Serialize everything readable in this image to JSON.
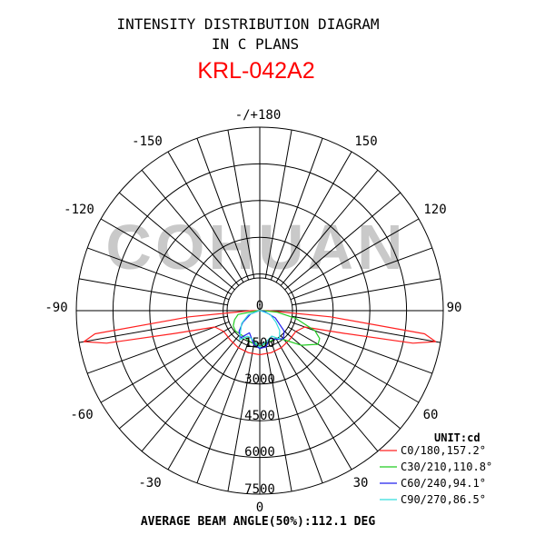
{
  "chart_data": {
    "type": "polar-line",
    "title_line1": "INTENSITY DISTRIBUTION DIAGRAM",
    "title_line2": "IN C PLANS",
    "model": "KRL-042A2",
    "watermark": "COHUAN",
    "unit_label": "UNIT:cd",
    "footer": "AVERAGE BEAM ANGLE(50%):112.1 DEG",
    "radial_max": 7500,
    "radial_ticks": [
      "0",
      "1500",
      "3000",
      "4500",
      "6000",
      "7500"
    ],
    "radial_tick_values": [
      0,
      1500,
      3000,
      4500,
      6000,
      7500
    ],
    "angle_labels": [
      {
        "text": "-/+180",
        "angle": 180
      },
      {
        "text": "-150",
        "angle": -150
      },
      {
        "text": "150",
        "angle": 150
      },
      {
        "text": "-120",
        "angle": -120
      },
      {
        "text": "120",
        "angle": 120
      },
      {
        "text": "-90",
        "angle": -90
      },
      {
        "text": "90",
        "angle": 90
      },
      {
        "text": "-60",
        "angle": -60
      },
      {
        "text": "60",
        "angle": 60
      },
      {
        "text": "-30",
        "angle": -30
      },
      {
        "text": "30",
        "angle": 30
      },
      {
        "text": "0",
        "angle": 0
      }
    ],
    "series": [
      {
        "name": "C0/180,157.2°",
        "color": "#ff2020",
        "points": [
          [
            -90,
            350
          ],
          [
            -85,
            2900
          ],
          [
            -82,
            6800
          ],
          [
            -80,
            7300
          ],
          [
            -78,
            6400
          ],
          [
            -75,
            3600
          ],
          [
            -70,
            1950
          ],
          [
            -60,
            1700
          ],
          [
            -45,
            1700
          ],
          [
            -30,
            1750
          ],
          [
            -15,
            1780
          ],
          [
            0,
            1800
          ],
          [
            15,
            1780
          ],
          [
            30,
            1750
          ],
          [
            45,
            1700
          ],
          [
            60,
            1700
          ],
          [
            70,
            1950
          ],
          [
            75,
            3600
          ],
          [
            78,
            6400
          ],
          [
            80,
            7300
          ],
          [
            82,
            6800
          ],
          [
            85,
            2900
          ],
          [
            90,
            350
          ]
        ]
      },
      {
        "name": "C30/210,110.8°",
        "color": "#22cc22",
        "points": [
          [
            -90,
            80
          ],
          [
            -80,
            900
          ],
          [
            -70,
            1100
          ],
          [
            -60,
            1250
          ],
          [
            -50,
            1300
          ],
          [
            -40,
            1250
          ],
          [
            -30,
            1250
          ],
          [
            -15,
            1350
          ],
          [
            0,
            1450
          ],
          [
            15,
            1350
          ],
          [
            30,
            1300
          ],
          [
            40,
            1550
          ],
          [
            50,
            2200
          ],
          [
            60,
            2750
          ],
          [
            65,
            2700
          ],
          [
            70,
            2400
          ],
          [
            78,
            1500
          ],
          [
            85,
            700
          ],
          [
            90,
            150
          ]
        ]
      },
      {
        "name": "C60/240,94.1°",
        "color": "#2222ee",
        "points": [
          [
            -90,
            20
          ],
          [
            -70,
            400
          ],
          [
            -55,
            850
          ],
          [
            -45,
            1200
          ],
          [
            -35,
            1350
          ],
          [
            -25,
            1000
          ],
          [
            -10,
            1400
          ],
          [
            0,
            1550
          ],
          [
            10,
            1500
          ],
          [
            20,
            1200
          ],
          [
            30,
            1350
          ],
          [
            40,
            1500
          ],
          [
            50,
            1300
          ],
          [
            65,
            700
          ],
          [
            80,
            200
          ],
          [
            90,
            20
          ]
        ]
      },
      {
        "name": "C90/270,86.5°",
        "color": "#33dddd",
        "points": [
          [
            -90,
            20
          ],
          [
            -70,
            500
          ],
          [
            -55,
            900
          ],
          [
            -45,
            1100
          ],
          [
            -35,
            1450
          ],
          [
            -25,
            1150
          ],
          [
            -15,
            1200
          ],
          [
            0,
            1500
          ],
          [
            15,
            1250
          ],
          [
            25,
            1150
          ],
          [
            35,
            1400
          ],
          [
            45,
            1150
          ],
          [
            55,
            800
          ],
          [
            70,
            450
          ],
          [
            90,
            20
          ]
        ]
      }
    ]
  }
}
